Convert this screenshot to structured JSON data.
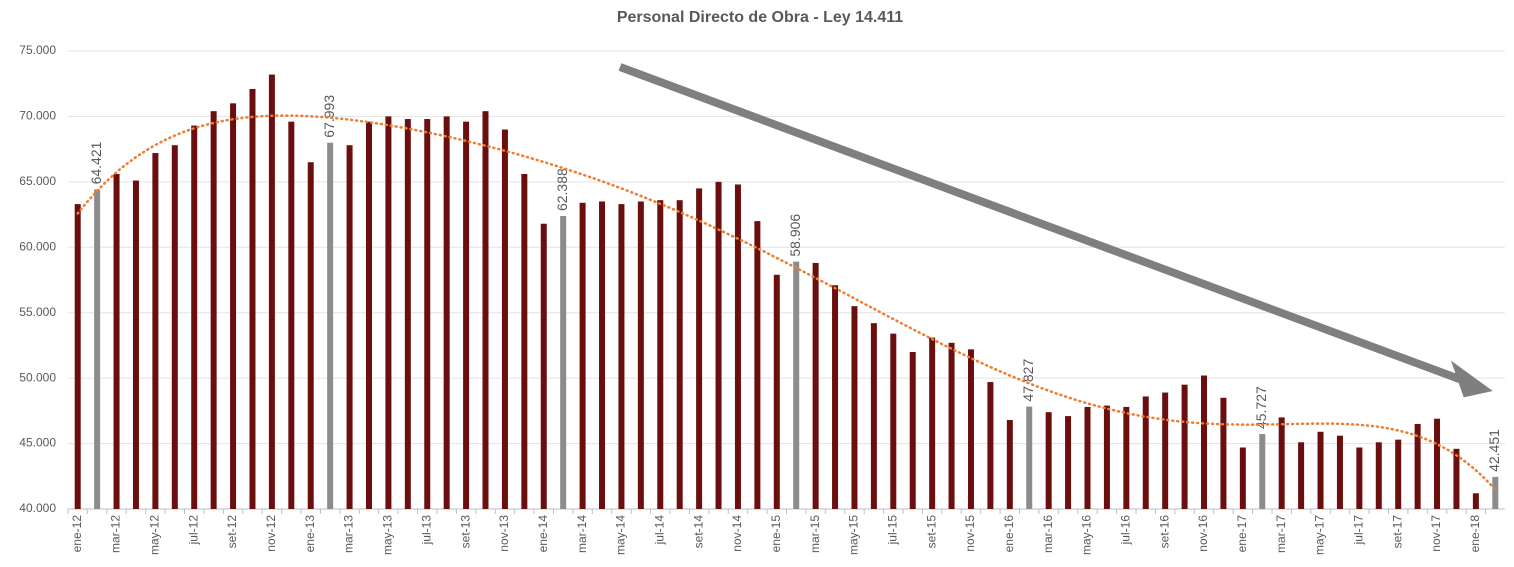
{
  "chart_data": {
    "type": "bar",
    "title": "Personal Directo de Obra - Ley 14.411",
    "categories": [
      "ene-12",
      null,
      "mar-12",
      null,
      "may-12",
      null,
      "jul-12",
      null,
      "set-12",
      null,
      "nov-12",
      null,
      "ene-13",
      null,
      "mar-13",
      null,
      "may-13",
      null,
      "jul-13",
      null,
      "set-13",
      null,
      "nov-13",
      null,
      "ene-14",
      null,
      "mar-14",
      null,
      "may-14",
      null,
      "jul-14",
      null,
      "set-14",
      null,
      "nov-14",
      null,
      "ene-15",
      null,
      "mar-15",
      null,
      "may-15",
      null,
      "jul-15",
      null,
      "set-15",
      null,
      "nov-15",
      null,
      "ene-16",
      null,
      "mar-16",
      null,
      "may-16",
      null,
      "jul-16",
      null,
      "set-16",
      null,
      "nov-16",
      null,
      "ene-17",
      null,
      "mar-17",
      null,
      "may-17",
      null,
      "jul-17",
      null,
      "set-17",
      null,
      "nov-17",
      null,
      "ene-18",
      null
    ],
    "values": [
      63300,
      64421,
      65600,
      65100,
      67200,
      67800,
      69300,
      70400,
      71000,
      72100,
      73200,
      69600,
      66500,
      67993,
      67800,
      69600,
      70000,
      69800,
      69800,
      70000,
      69600,
      70400,
      69000,
      65600,
      61800,
      62388,
      63400,
      63500,
      63300,
      63500,
      63600,
      63600,
      64500,
      65000,
      64800,
      62000,
      57900,
      58906,
      58800,
      57100,
      55500,
      54200,
      53400,
      52000,
      53100,
      52700,
      52200,
      49700,
      46800,
      47827,
      47400,
      47100,
      47800,
      47900,
      47800,
      48600,
      48900,
      49500,
      50200,
      48500,
      44700,
      45727,
      47000,
      45100,
      45900,
      45600,
      44700,
      45100,
      45300,
      46500,
      46900,
      44600,
      41200,
      42451
    ],
    "value_labels": [
      null,
      "64.421",
      null,
      null,
      null,
      null,
      null,
      null,
      null,
      null,
      null,
      null,
      null,
      "67.993",
      null,
      null,
      null,
      null,
      null,
      null,
      null,
      null,
      null,
      null,
      null,
      "62.388",
      null,
      null,
      null,
      null,
      null,
      null,
      null,
      null,
      null,
      null,
      null,
      "58.906",
      null,
      null,
      null,
      null,
      null,
      null,
      null,
      null,
      null,
      null,
      null,
      "47.827",
      null,
      null,
      null,
      null,
      null,
      null,
      null,
      null,
      null,
      null,
      null,
      "45.727",
      null,
      null,
      null,
      null,
      null,
      null,
      null,
      null,
      null,
      null,
      null,
      "42.451"
    ],
    "colors": [
      "#6b0e0e",
      "#8c8c8c",
      "#6b0e0e",
      "#6b0e0e",
      "#6b0e0e",
      "#6b0e0e",
      "#6b0e0e",
      "#6b0e0e",
      "#6b0e0e",
      "#6b0e0e",
      "#6b0e0e",
      "#6b0e0e",
      "#6b0e0e",
      "#8c8c8c",
      "#6b0e0e",
      "#6b0e0e",
      "#6b0e0e",
      "#6b0e0e",
      "#6b0e0e",
      "#6b0e0e",
      "#6b0e0e",
      "#6b0e0e",
      "#6b0e0e",
      "#6b0e0e",
      "#6b0e0e",
      "#8c8c8c",
      "#6b0e0e",
      "#6b0e0e",
      "#6b0e0e",
      "#6b0e0e",
      "#6b0e0e",
      "#6b0e0e",
      "#6b0e0e",
      "#6b0e0e",
      "#6b0e0e",
      "#6b0e0e",
      "#6b0e0e",
      "#8c8c8c",
      "#6b0e0e",
      "#6b0e0e",
      "#6b0e0e",
      "#6b0e0e",
      "#6b0e0e",
      "#6b0e0e",
      "#6b0e0e",
      "#6b0e0e",
      "#6b0e0e",
      "#6b0e0e",
      "#6b0e0e",
      "#8c8c8c",
      "#6b0e0e",
      "#6b0e0e",
      "#6b0e0e",
      "#6b0e0e",
      "#6b0e0e",
      "#6b0e0e",
      "#6b0e0e",
      "#6b0e0e",
      "#6b0e0e",
      "#6b0e0e",
      "#6b0e0e",
      "#8c8c8c",
      "#6b0e0e",
      "#6b0e0e",
      "#6b0e0e",
      "#6b0e0e",
      "#6b0e0e",
      "#6b0e0e",
      "#6b0e0e",
      "#6b0e0e",
      "#6b0e0e",
      "#6b0e0e",
      "#6b0e0e",
      "#8c8c8c"
    ],
    "ylim": [
      40000,
      75000
    ],
    "yticks": [
      {
        "value": 40000,
        "label": "40.000"
      },
      {
        "value": 45000,
        "label": "45.000"
      },
      {
        "value": 50000,
        "label": "50.000"
      },
      {
        "value": 55000,
        "label": "55.000"
      },
      {
        "value": 60000,
        "label": "60.000"
      },
      {
        "value": 65000,
        "label": "65.000"
      },
      {
        "value": 70000,
        "label": "70.000"
      },
      {
        "value": 75000,
        "label": "75.000"
      }
    ],
    "grid": true,
    "trendline": {
      "kind": "polynomial",
      "order": 6,
      "color": "#ed7d31"
    }
  }
}
